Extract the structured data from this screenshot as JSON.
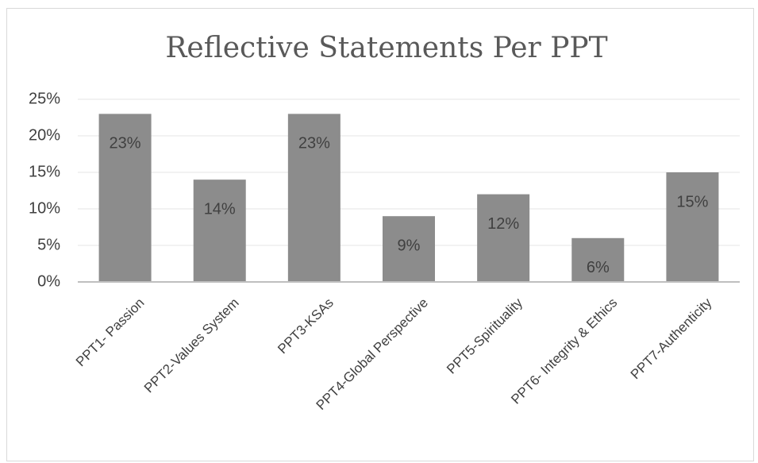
{
  "chart_data": {
    "type": "bar",
    "title": "Reflective Statements Per PPT",
    "categories": [
      "PPT1- Passion",
      "PPT2-Values System",
      "PPT3-KSAs",
      "PPT4-Global Perspective",
      "PPT5-Spirituality",
      "PPT6- Integrity & Ethics",
      "PPT7-Authenticity"
    ],
    "values": [
      23,
      14,
      23,
      9,
      12,
      6,
      15
    ],
    "value_labels": [
      "23%",
      "14%",
      "23%",
      "9%",
      "12%",
      "6%",
      "15%"
    ],
    "color": "#8c8c8c",
    "ylim": [
      0,
      25
    ],
    "yticks": [
      {
        "value": 0,
        "label": "0%"
      },
      {
        "value": 5,
        "label": "5%"
      },
      {
        "value": 10,
        "label": "10%"
      },
      {
        "value": 15,
        "label": "15%"
      },
      {
        "value": 20,
        "label": "20%"
      },
      {
        "value": 25,
        "label": "25%"
      }
    ],
    "grid": true
  }
}
